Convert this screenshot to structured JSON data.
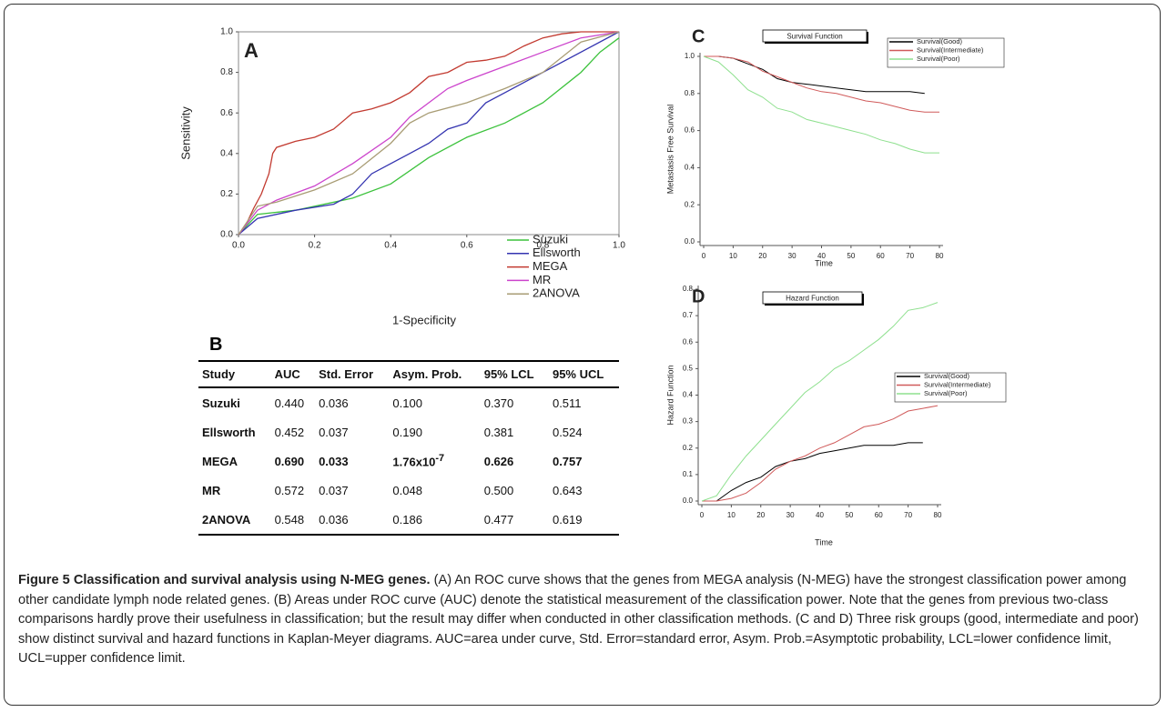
{
  "chart_data": [
    {
      "type": "line",
      "panel": "A",
      "xlabel": "1-Specificity",
      "ylabel": "Sensitivity",
      "xlim": [
        0,
        1
      ],
      "ylim": [
        0,
        1
      ],
      "xticks": [
        {
          "value": 0,
          "label": "0.0"
        },
        {
          "value": 0.2,
          "label": "0.2"
        },
        {
          "value": 0.4,
          "label": "0.4"
        },
        {
          "value": 0.6,
          "label": "0.6"
        },
        {
          "value": 0.8,
          "label": "0.8"
        },
        {
          "value": 1,
          "label": "1.0"
        }
      ],
      "yticks": [
        {
          "value": 0,
          "label": "0.0"
        },
        {
          "value": 0.2,
          "label": "0.2"
        },
        {
          "value": 0.4,
          "label": "0.4"
        },
        {
          "value": 0.6,
          "label": "0.6"
        },
        {
          "value": 0.8,
          "label": "0.8"
        },
        {
          "value": 1,
          "label": "1.0"
        }
      ],
      "series": [
        {
          "name": "Suzuki",
          "color": "#3cc23c",
          "x": [
            0,
            0.05,
            0.15,
            0.3,
            0.4,
            0.5,
            0.6,
            0.7,
            0.8,
            0.9,
            0.95,
            1
          ],
          "values": [
            0,
            0.1,
            0.12,
            0.18,
            0.25,
            0.38,
            0.48,
            0.55,
            0.65,
            0.8,
            0.9,
            0.97
          ]
        },
        {
          "name": "Ellsworth",
          "color": "#3434b0",
          "x": [
            0,
            0.05,
            0.15,
            0.25,
            0.3,
            0.35,
            0.4,
            0.45,
            0.5,
            0.55,
            0.6,
            0.65,
            0.7,
            0.8,
            0.9,
            1
          ],
          "values": [
            0,
            0.08,
            0.12,
            0.15,
            0.2,
            0.3,
            0.35,
            0.4,
            0.45,
            0.52,
            0.55,
            0.65,
            0.7,
            0.8,
            0.9,
            1
          ]
        },
        {
          "name": "MEGA",
          "color": "#c23a30",
          "x": [
            0,
            0.02,
            0.04,
            0.06,
            0.08,
            0.09,
            0.1,
            0.15,
            0.2,
            0.25,
            0.3,
            0.35,
            0.4,
            0.45,
            0.5,
            0.55,
            0.6,
            0.65,
            0.7,
            0.75,
            0.8,
            0.85,
            0.9,
            1
          ],
          "values": [
            0,
            0.05,
            0.13,
            0.2,
            0.3,
            0.4,
            0.43,
            0.46,
            0.48,
            0.52,
            0.6,
            0.62,
            0.65,
            0.7,
            0.78,
            0.8,
            0.85,
            0.86,
            0.88,
            0.93,
            0.97,
            0.99,
            1,
            1
          ]
        },
        {
          "name": "MR",
          "color": "#cc44cc",
          "x": [
            0,
            0.05,
            0.1,
            0.2,
            0.3,
            0.4,
            0.45,
            0.5,
            0.55,
            0.6,
            0.7,
            0.8,
            0.9,
            1
          ],
          "values": [
            0,
            0.12,
            0.17,
            0.24,
            0.35,
            0.48,
            0.58,
            0.65,
            0.72,
            0.76,
            0.83,
            0.9,
            0.97,
            1
          ]
        },
        {
          "name": "2ANOVA",
          "color": "#a89c74",
          "x": [
            0,
            0.05,
            0.1,
            0.2,
            0.3,
            0.4,
            0.45,
            0.5,
            0.6,
            0.7,
            0.8,
            0.9,
            1
          ],
          "values": [
            0,
            0.14,
            0.16,
            0.22,
            0.3,
            0.45,
            0.55,
            0.6,
            0.65,
            0.72,
            0.8,
            0.95,
            1
          ]
        }
      ]
    },
    {
      "type": "line",
      "panel": "C",
      "title": "Survival Function",
      "xlabel": "Time",
      "ylabel": "Metastasis Free Survival",
      "xlim": [
        0,
        80
      ],
      "ylim": [
        0,
        1
      ],
      "xticks": [
        0,
        10,
        20,
        30,
        40,
        50,
        60,
        70,
        80
      ],
      "yticks": [
        {
          "value": 0,
          "label": "0.0"
        },
        {
          "value": 0.2,
          "label": "0.2"
        },
        {
          "value": 0.4,
          "label": "0.4"
        },
        {
          "value": 0.6,
          "label": "0.6"
        },
        {
          "value": 0.8,
          "label": "0.8"
        },
        {
          "value": 1,
          "label": "1.0"
        }
      ],
      "x": [
        0,
        5,
        10,
        15,
        20,
        25,
        30,
        35,
        40,
        45,
        50,
        55,
        60,
        65,
        70,
        75,
        80
      ],
      "series": [
        {
          "name": "Survival(Good)",
          "color": "#000000",
          "values": [
            1,
            1,
            0.99,
            0.96,
            0.93,
            0.88,
            0.86,
            0.85,
            0.84,
            0.83,
            0.82,
            0.81,
            0.81,
            0.81,
            0.81,
            0.8,
            null
          ]
        },
        {
          "name": "Survival(Intermediate)",
          "color": "#d05a5a",
          "values": [
            1,
            1,
            0.99,
            0.97,
            0.92,
            0.89,
            0.86,
            0.83,
            0.81,
            0.8,
            0.78,
            0.76,
            0.75,
            0.73,
            0.71,
            0.7,
            0.7
          ]
        },
        {
          "name": "Survival(Poor)",
          "color": "#8ee08e",
          "values": [
            1,
            0.97,
            0.9,
            0.82,
            0.78,
            0.72,
            0.7,
            0.66,
            0.64,
            0.62,
            0.6,
            0.58,
            0.55,
            0.53,
            0.5,
            0.48,
            0.48
          ]
        }
      ]
    },
    {
      "type": "line",
      "panel": "D",
      "title": "Hazard Function",
      "xlabel": "Time",
      "ylabel": "Hazard Function",
      "xlim": [
        0,
        80
      ],
      "ylim": [
        0,
        0.8
      ],
      "xticks": [
        0,
        10,
        20,
        30,
        40,
        50,
        60,
        70,
        80
      ],
      "yticks": [
        {
          "value": 0,
          "label": "0.0"
        },
        0.1,
        0.2,
        0.3,
        0.4,
        0.5,
        0.6,
        0.7,
        0.8
      ],
      "x": [
        0,
        5,
        10,
        15,
        20,
        25,
        30,
        35,
        40,
        45,
        50,
        55,
        60,
        65,
        70,
        75,
        80
      ],
      "series": [
        {
          "name": "Survival(Good)",
          "color": "#000000",
          "values": [
            0,
            0,
            0.04,
            0.07,
            0.09,
            0.13,
            0.15,
            0.16,
            0.18,
            0.19,
            0.2,
            0.21,
            0.21,
            0.21,
            0.22,
            0.22,
            null
          ]
        },
        {
          "name": "Survival(Intermediate)",
          "color": "#d05a5a",
          "values": [
            0,
            0,
            0.01,
            0.03,
            0.07,
            0.12,
            0.15,
            0.17,
            0.2,
            0.22,
            0.25,
            0.28,
            0.29,
            0.31,
            0.34,
            0.35,
            0.36
          ]
        },
        {
          "name": "Survival(Poor)",
          "color": "#8ee08e",
          "values": [
            0,
            0.02,
            0.1,
            0.17,
            0.23,
            0.29,
            0.35,
            0.41,
            0.45,
            0.5,
            0.53,
            0.57,
            0.61,
            0.66,
            0.72,
            0.73,
            0.75
          ]
        }
      ]
    }
  ],
  "table": {
    "panel": "B",
    "header": [
      "Study",
      "AUC",
      "Std. Error",
      "Asym. Prob.",
      "95% LCL",
      "95% UCL"
    ],
    "rows": [
      [
        "Suzuki",
        "0.440",
        "0.036",
        "0.100",
        "0.370",
        "0.511"
      ],
      [
        "Ellsworth",
        "0.452",
        "0.037",
        "0.190",
        "0.381",
        "0.524"
      ],
      [
        "MEGA",
        "0.690",
        "0.033",
        {
          "text": "1.76x10",
          "sup": "-7"
        },
        "0.626",
        "0.757"
      ],
      [
        "MR",
        "0.572",
        "0.037",
        "0.048",
        "0.500",
        "0.643"
      ],
      [
        "2ANOVA",
        "0.548",
        "0.036",
        "0.186",
        "0.477",
        "0.619"
      ]
    ]
  },
  "caption": {
    "title": "Figure 5 Classification and survival analysis using N-MEG genes.",
    "text": "(A) An ROC curve shows that the genes from MEGA analysis (N-MEG) have the strongest classification power among other candidate lymph node related genes. (B) Areas under ROC curve (AUC) denote the statistical measurement of the classification power. Note that the genes from previous two-class comparisons hardly prove their usefulness in classification; but the result may differ when conducted in other classification methods. (C and D) Three risk groups (good, intermediate and poor) show distinct survival and hazard functions in Kaplan-Meyer diagrams. AUC=area under curve, Std. Error=standard error, Asym. Prob.=Asymptotic probability, LCL=lower confidence limit, UCL=upper confidence limit."
  }
}
